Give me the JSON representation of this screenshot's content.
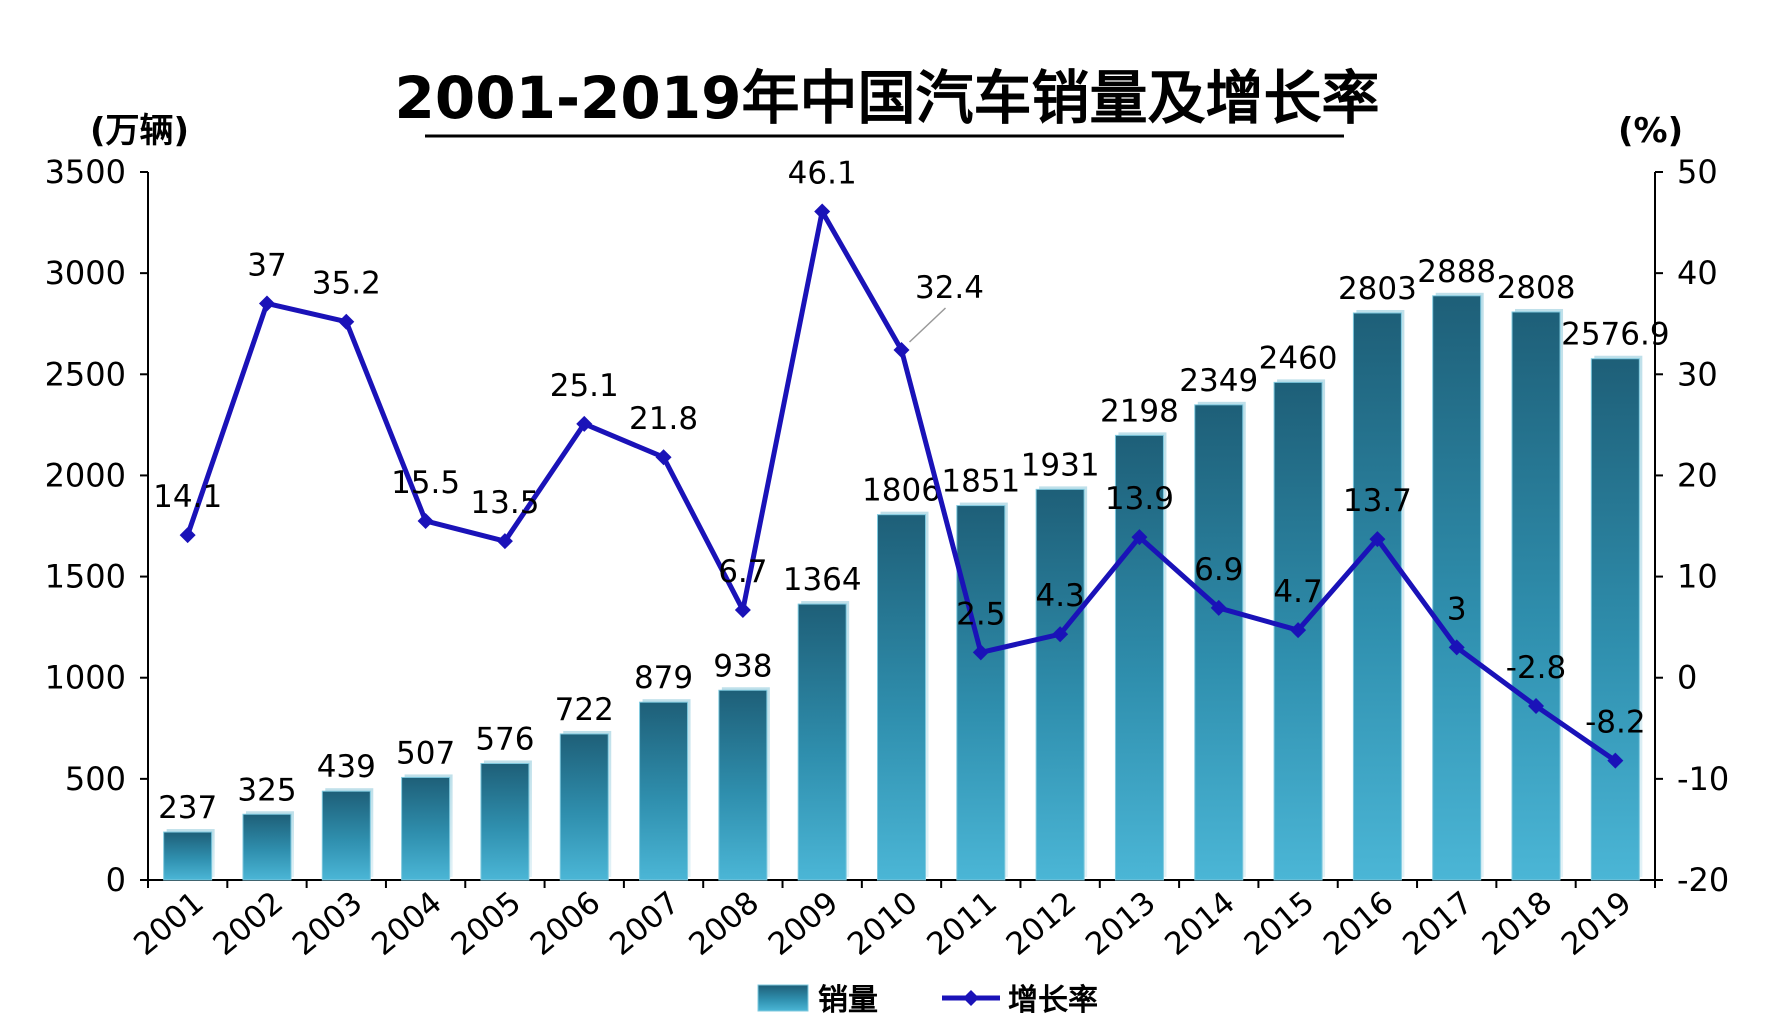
{
  "chart_data": {
    "type": "bar",
    "title": "2001-2019年中国汽车销量及增长率",
    "left_unit": "(万辆)",
    "right_unit": "(%)",
    "categories": [
      "2001",
      "2002",
      "2003",
      "2004",
      "2005",
      "2006",
      "2007",
      "2008",
      "2009",
      "2010",
      "2011",
      "2012",
      "2013",
      "2014",
      "2015",
      "2016",
      "2017",
      "2018",
      "2019"
    ],
    "series": [
      {
        "name": "销量",
        "type": "bar",
        "axis": "left",
        "color": "#2d8fae",
        "values": [
          237,
          325,
          439,
          507,
          576,
          722,
          879,
          938,
          1364,
          1806,
          1851,
          1931,
          2198,
          2349,
          2460,
          2803,
          2888,
          2808,
          2576.9
        ],
        "labels": [
          "237",
          "325",
          "439",
          "507",
          "576",
          "722",
          "879",
          "938",
          "1364",
          "1806",
          "1851",
          "1931",
          "2198",
          "2349",
          "2460",
          "2803",
          "2888",
          "2808",
          "2576.9"
        ]
      },
      {
        "name": "增长率",
        "type": "line",
        "axis": "right",
        "color": "#1a12b8",
        "values": [
          14.1,
          37,
          35.2,
          15.5,
          13.5,
          25.1,
          21.8,
          6.7,
          46.1,
          32.4,
          2.5,
          4.3,
          13.9,
          6.9,
          4.7,
          13.7,
          3,
          -2.8,
          -8.2
        ],
        "labels": [
          "14.1",
          "37",
          "35.2",
          "15.5",
          "13.5",
          "25.1",
          "21.8",
          "6.7",
          "46.1",
          "32.4",
          "2.5",
          "4.3",
          "13.9",
          "6.9",
          "4.7",
          "13.7",
          "3",
          "-2.8",
          "-8.2"
        ]
      }
    ],
    "y_left": {
      "min": 0,
      "max": 3500,
      "ticks": [
        "0",
        "500",
        "1000",
        "1500",
        "2000",
        "2500",
        "3000",
        "3500"
      ]
    },
    "y_right": {
      "min": -20,
      "max": 50,
      "ticks": [
        "-20",
        "-10",
        "0",
        "10",
        "20",
        "30",
        "40",
        "50"
      ]
    },
    "legend_position": "bottom",
    "grid": false
  }
}
